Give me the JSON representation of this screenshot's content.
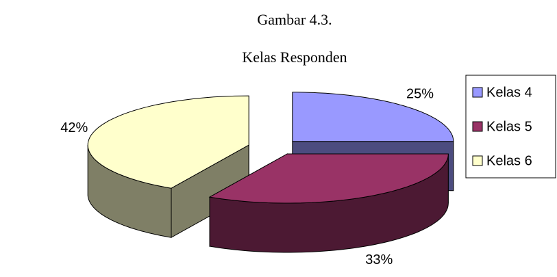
{
  "chart_data": {
    "type": "pie",
    "title": "Gambar 4.3.",
    "subtitle": "Kelas Responden",
    "categories": [
      "Kelas 4",
      "Kelas 5",
      "Kelas 6"
    ],
    "values": [
      25,
      33,
      42
    ],
    "value_labels": [
      "25%",
      "33%",
      "42%"
    ],
    "colors": [
      "#9999ff",
      "#993366",
      "#ffffcc"
    ],
    "legend": "right"
  }
}
